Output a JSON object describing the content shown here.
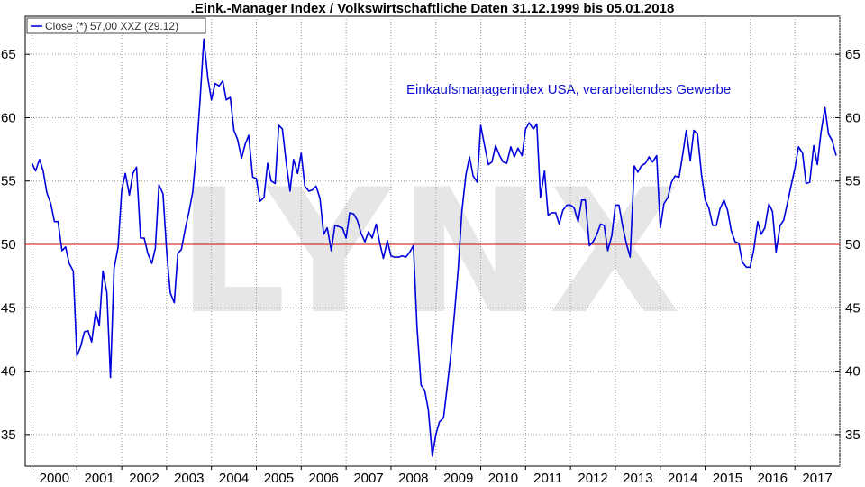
{
  "chart_data": {
    "type": "line",
    "title": ".Eink.-Manager Index / Volkswirtschaftliche Daten 31.12.1999 bis 05.01.2018",
    "legend": "Close (*) 57,00 XXZ (29.12)",
    "legend_position": "top-left",
    "annotation": "Einkaufsmanagerindex USA, verarbeitendes Gewerbe",
    "watermark": "LYNX",
    "ylim": [
      32.5,
      68
    ],
    "y_ticks": [
      35,
      40,
      45,
      50,
      55,
      60,
      65
    ],
    "x_ticks": [
      "2000",
      "2001",
      "2002",
      "2003",
      "2004",
      "2005",
      "2006",
      "2007",
      "2008",
      "2009",
      "2010",
      "2011",
      "2012",
      "2013",
      "2014",
      "2015",
      "2016",
      "2017"
    ],
    "xlim": [
      1999.85,
      2018.0
    ],
    "reference_line": 50,
    "grid": true,
    "colors": {
      "series": "#0000dd",
      "reference": "#dd0000",
      "grid": "#9a9a9a",
      "watermark": "#e6e6e6"
    },
    "series": [
      {
        "x": [
          2000.0,
          2000.08,
          2000.17,
          2000.25,
          2000.33,
          2000.42,
          2000.5,
          2000.58,
          2000.67,
          2000.75,
          2000.83,
          2000.92,
          2001.0,
          2001.08,
          2001.17,
          2001.25,
          2001.33,
          2001.42,
          2001.5,
          2001.58,
          2001.67,
          2001.75,
          2001.83,
          2001.92,
          2002.0,
          2002.08,
          2002.17,
          2002.25,
          2002.33,
          2002.42,
          2002.5,
          2002.58,
          2002.67,
          2002.75,
          2002.83,
          2002.92,
          2003.0,
          2003.08,
          2003.17,
          2003.25,
          2003.33,
          2003.42,
          2003.5,
          2003.58,
          2003.67,
          2003.75,
          2003.83,
          2003.92,
          2004.0,
          2004.08,
          2004.17,
          2004.25,
          2004.33,
          2004.42,
          2004.5,
          2004.58,
          2004.67,
          2004.75,
          2004.83,
          2004.92,
          2005.0,
          2005.08,
          2005.17,
          2005.25,
          2005.33,
          2005.42,
          2005.5,
          2005.58,
          2005.67,
          2005.75,
          2005.83,
          2005.92,
          2006.0,
          2006.08,
          2006.17,
          2006.25,
          2006.33,
          2006.42,
          2006.5,
          2006.58,
          2006.67,
          2006.75,
          2006.83,
          2006.92,
          2007.0,
          2007.08,
          2007.17,
          2007.25,
          2007.33,
          2007.42,
          2007.5,
          2007.58,
          2007.67,
          2007.75,
          2007.83,
          2007.92,
          2008.0,
          2008.08,
          2008.17,
          2008.25,
          2008.33,
          2008.42,
          2008.5,
          2008.58,
          2008.67,
          2008.75,
          2008.83,
          2008.92,
          2009.0,
          2009.08,
          2009.17,
          2009.25,
          2009.33,
          2009.42,
          2009.5,
          2009.58,
          2009.67,
          2009.75,
          2009.83,
          2009.92,
          2010.0,
          2010.08,
          2010.17,
          2010.25,
          2010.33,
          2010.42,
          2010.5,
          2010.58,
          2010.67,
          2010.75,
          2010.83,
          2010.92,
          2011.0,
          2011.08,
          2011.17,
          2011.25,
          2011.33,
          2011.42,
          2011.5,
          2011.58,
          2011.67,
          2011.75,
          2011.83,
          2011.92,
          2012.0,
          2012.08,
          2012.17,
          2012.25,
          2012.33,
          2012.42,
          2012.5,
          2012.58,
          2012.67,
          2012.75,
          2012.83,
          2012.92,
          2013.0,
          2013.08,
          2013.17,
          2013.25,
          2013.33,
          2013.42,
          2013.5,
          2013.58,
          2013.67,
          2013.75,
          2013.83,
          2013.92,
          2014.0,
          2014.08,
          2014.17,
          2014.25,
          2014.33,
          2014.42,
          2014.5,
          2014.58,
          2014.67,
          2014.75,
          2014.83,
          2014.92,
          2015.0,
          2015.08,
          2015.17,
          2015.25,
          2015.33,
          2015.42,
          2015.5,
          2015.58,
          2015.67,
          2015.75,
          2015.83,
          2015.92,
          2016.0,
          2016.08,
          2016.17,
          2016.25,
          2016.33,
          2016.42,
          2016.5,
          2016.58,
          2016.67,
          2016.75,
          2016.83,
          2016.92,
          2017.0,
          2017.08,
          2017.17,
          2017.25,
          2017.33,
          2017.42,
          2017.5,
          2017.58,
          2017.67,
          2017.75,
          2017.83,
          2017.92
        ],
        "values": [
          56.4,
          55.8,
          56.7,
          55.8,
          54.1,
          53.2,
          51.8,
          51.8,
          49.5,
          49.8,
          48.5,
          47.9,
          41.2,
          41.9,
          43.1,
          43.2,
          42.3,
          44.7,
          43.6,
          47.9,
          46.2,
          39.5,
          48.1,
          49.8,
          54.3,
          55.6,
          53.9,
          55.6,
          56.1,
          50.5,
          50.5,
          49.3,
          48.5,
          49.7,
          54.7,
          54.0,
          49.5,
          46.2,
          45.4,
          49.3,
          49.6,
          51.3,
          52.6,
          54.1,
          57.6,
          61.6,
          66.2,
          63.1,
          61.4,
          62.7,
          62.5,
          62.9,
          61.4,
          61.6,
          59.0,
          58.3,
          56.8,
          57.9,
          58.6,
          55.3,
          55.2,
          53.4,
          53.7,
          56.4,
          55.0,
          54.8,
          59.4,
          59.1,
          56.3,
          54.2,
          56.7,
          55.6,
          57.2,
          54.6,
          54.2,
          54.3,
          54.6,
          53.6,
          50.8,
          51.3,
          49.5,
          51.5,
          51.4,
          51.3,
          50.5,
          52.5,
          52.4,
          51.9,
          50.9,
          50.2,
          51.0,
          50.5,
          51.6,
          50.1,
          48.9,
          50.3,
          49.1,
          49.0,
          49.0,
          49.1,
          49.0,
          49.4,
          49.9,
          43.5,
          38.9,
          38.5,
          37.0,
          33.3,
          35.0,
          36.0,
          36.3,
          38.7,
          41.2,
          44.8,
          48.1,
          52.6,
          55.5,
          56.9,
          55.4,
          54.9,
          59.4,
          57.9,
          56.3,
          56.5,
          57.8,
          57.0,
          56.5,
          56.4,
          57.7,
          56.9,
          57.6,
          57.0,
          59.1,
          59.6,
          59.1,
          59.5,
          53.7,
          55.8,
          52.3,
          52.5,
          52.5,
          51.6,
          52.7,
          53.1,
          53.1,
          52.9,
          51.8,
          53.5,
          53.5,
          49.9,
          50.2,
          50.7,
          51.6,
          51.5,
          49.5,
          50.7,
          53.1,
          53.1,
          51.3,
          50.0,
          49.0,
          56.2,
          55.7,
          56.2,
          56.4,
          56.9,
          56.5,
          57.0,
          51.3,
          53.2,
          53.7,
          54.9,
          55.4,
          55.3,
          57.1,
          59.0,
          56.6,
          59.0,
          58.7,
          55.5,
          53.5,
          52.9,
          51.5,
          51.5,
          52.8,
          53.5,
          52.7,
          51.1,
          50.2,
          50.1,
          48.6,
          48.2,
          48.2,
          49.5,
          51.8,
          50.8,
          51.3,
          53.2,
          52.6,
          49.4,
          51.5,
          51.9,
          53.2,
          54.7,
          56.0,
          57.7,
          57.2,
          54.8,
          54.9,
          57.8,
          56.3,
          58.8,
          60.8,
          58.7,
          58.2,
          57.0
        ]
      }
    ]
  }
}
